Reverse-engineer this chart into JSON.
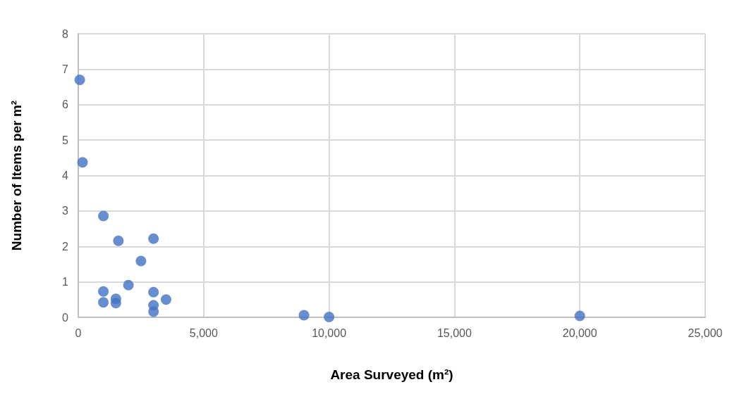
{
  "chart_data": {
    "type": "scatter",
    "xlabel": "Area Surveyed (m²)",
    "ylabel": "Number of Items per m²",
    "x": [
      60,
      170,
      1000,
      1000,
      1000,
      1500,
      1500,
      1600,
      2000,
      2500,
      3000,
      3000,
      3000,
      3000,
      3500,
      9000,
      10000,
      20000
    ],
    "values": [
      6.7,
      4.37,
      2.86,
      0.73,
      0.42,
      0.52,
      0.4,
      2.16,
      0.91,
      1.59,
      2.22,
      0.71,
      0.34,
      0.16,
      0.5,
      0.06,
      0.01,
      0.04
    ],
    "color": "#4472c4",
    "marker": "circle",
    "xlim": [
      0,
      25000
    ],
    "xticks": [
      0,
      {
        "value": 5000,
        "label": "5,000"
      },
      {
        "value": 10000,
        "label": "10,000"
      },
      {
        "value": 15000,
        "label": "15,000"
      },
      {
        "value": 20000,
        "label": "20,000"
      },
      {
        "value": 25000,
        "label": "25,000"
      }
    ],
    "ylim": [
      0,
      8
    ],
    "yticks": [
      0,
      1,
      2,
      3,
      4,
      5,
      6,
      7,
      8
    ],
    "grid": true
  }
}
